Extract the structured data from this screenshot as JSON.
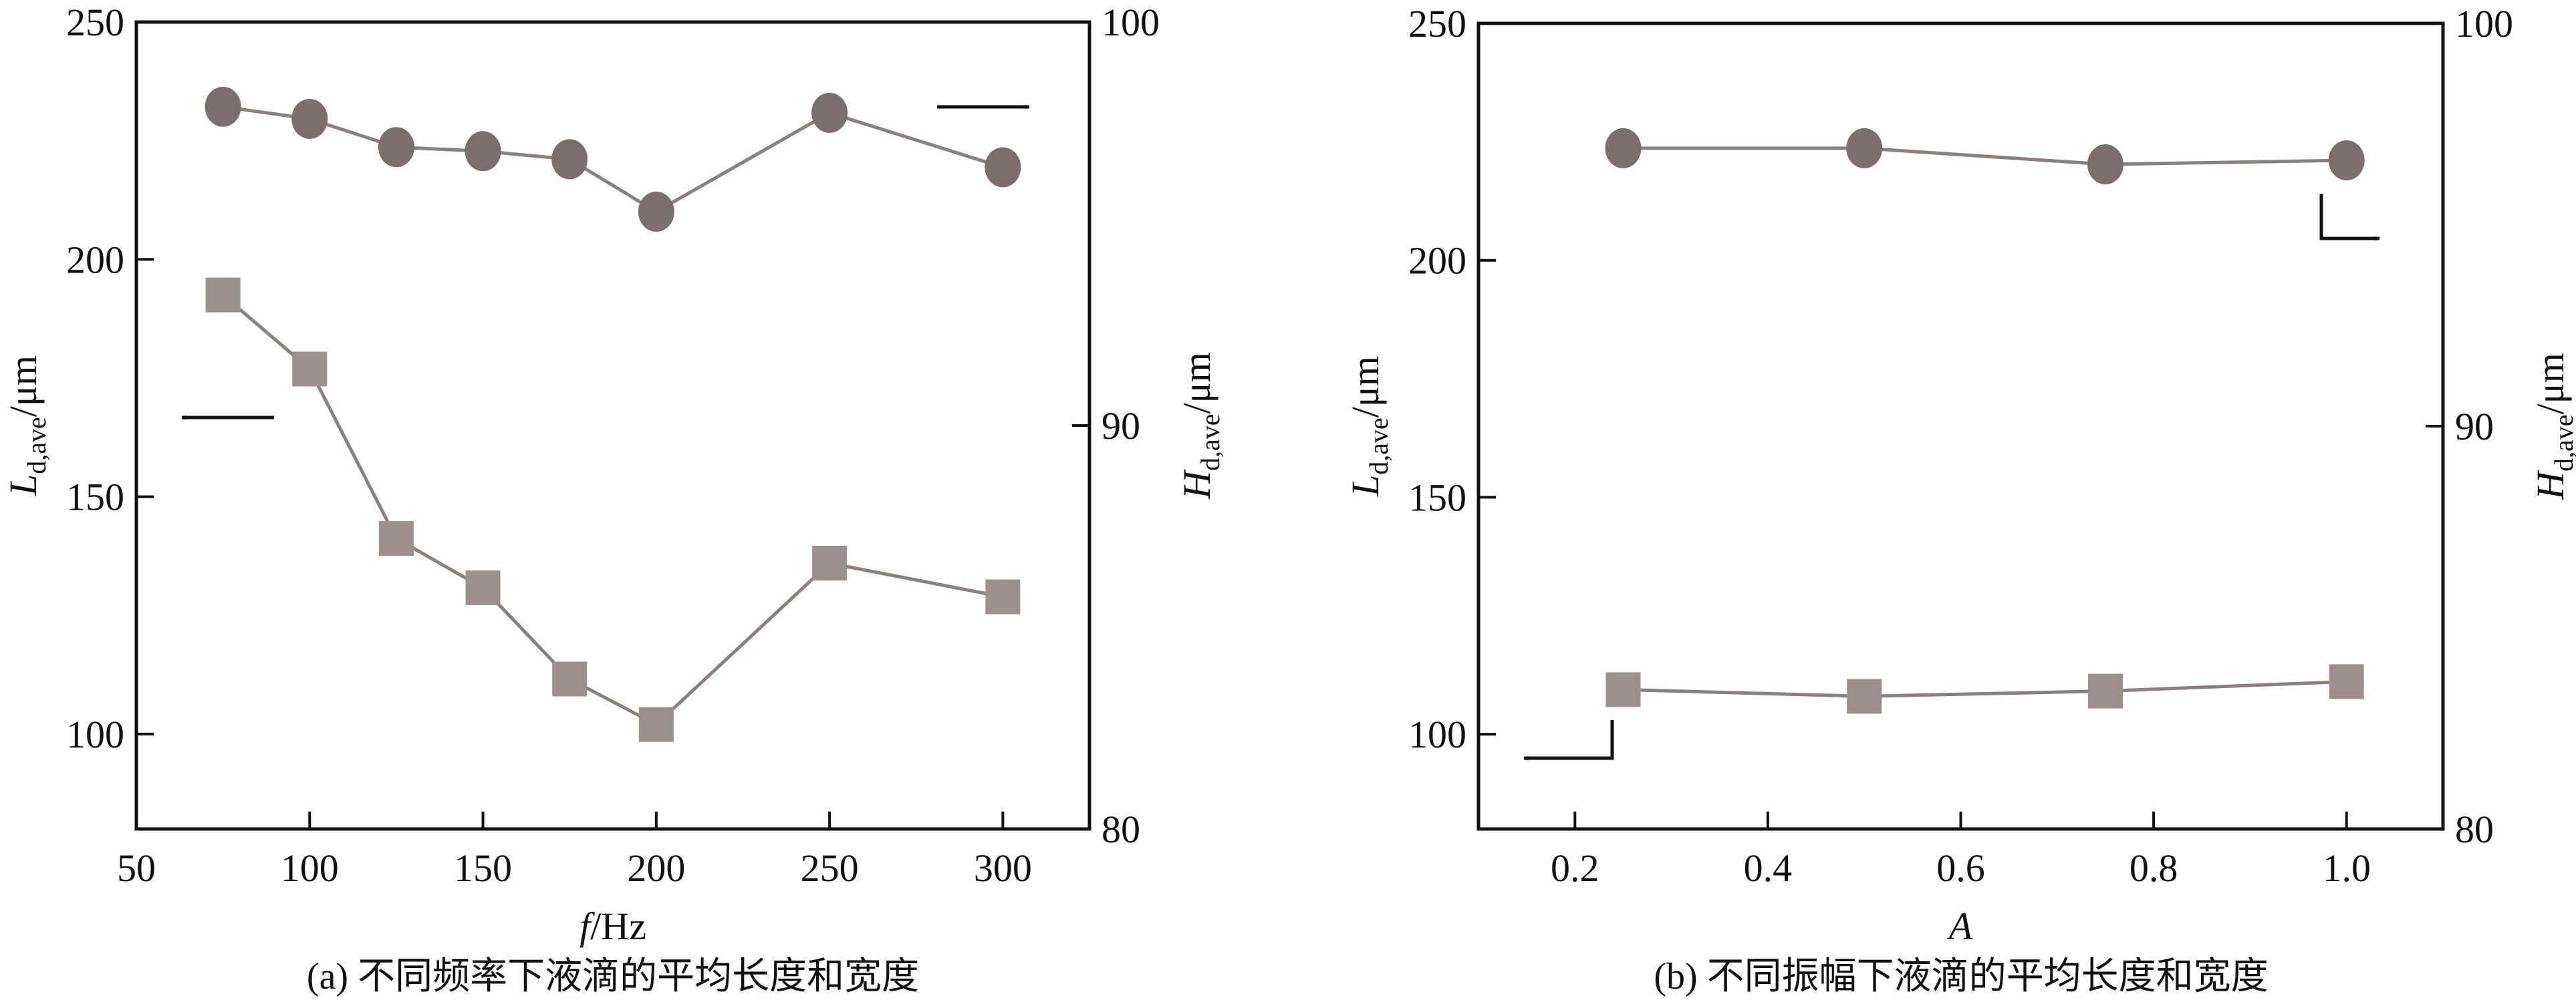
{
  "chart_data": [
    {
      "type": "line",
      "caption": "(a) 不同频率下液滴的平均长度和宽度",
      "xlabel_italic": "f",
      "xlabel_rest": "/Hz",
      "ylabel_left": {
        "main": "L",
        "sub": "d,ave",
        "unit": "/μm"
      },
      "ylabel_right": {
        "main": "H",
        "sub": "d,ave",
        "unit": "/μm"
      },
      "xlim": [
        50,
        325
      ],
      "ylim_left": [
        80,
        250
      ],
      "ylim_right": [
        80,
        100
      ],
      "xticks": [
        50,
        100,
        150,
        200,
        250,
        300
      ],
      "yticks_left": [
        100,
        150,
        200,
        250
      ],
      "yticks_right": [
        80,
        90,
        100
      ],
      "series": [
        {
          "name": "L_d,ave",
          "axis": "left",
          "marker": "square",
          "color": "#9a9090",
          "x": [
            75,
            100,
            125,
            150,
            175,
            200,
            250,
            300
          ],
          "y": [
            192.5,
            176.9,
            141.2,
            130.8,
            111.6,
            102.0,
            136.0,
            128.9
          ]
        },
        {
          "name": "H_d,ave",
          "axis": "right",
          "marker": "circle",
          "color": "#7a6e6e",
          "x": [
            75,
            100,
            125,
            150,
            175,
            200,
            250,
            300
          ],
          "y": [
            97.9,
            97.6,
            96.9,
            96.8,
            96.6,
            95.3,
            97.75,
            96.4
          ]
        }
      ],
      "annotations": [
        "arrow-left pointing to left axis (L series)",
        "arrow-right pointing to right axis (H series)"
      ]
    },
    {
      "type": "line",
      "caption": "(b) 不同振幅下液滴的平均长度和宽度",
      "xlabel_italic": "A",
      "xlabel_rest": "",
      "ylabel_left": {
        "main": "L",
        "sub": "d,ave",
        "unit": "/μm"
      },
      "ylabel_right": {
        "main": "H",
        "sub": "d,ave",
        "unit": "/μm"
      },
      "xlim": [
        0.1,
        1.1
      ],
      "ylim_left": [
        80,
        250
      ],
      "ylim_right": [
        80,
        100
      ],
      "xticks": [
        "0.2",
        "0.4",
        "0.6",
        "0.8",
        "1.0"
      ],
      "yticks_left": [
        100,
        150,
        200,
        250
      ],
      "yticks_right": [
        80,
        90,
        100
      ],
      "series": [
        {
          "name": "L_d,ave",
          "axis": "left",
          "marker": "square",
          "color": "#9a9090",
          "x": [
            0.25,
            0.5,
            0.75,
            1.0
          ],
          "y": [
            109.4,
            108.0,
            109.1,
            111.1
          ]
        },
        {
          "name": "H_d,ave",
          "axis": "right",
          "marker": "circle",
          "color": "#7a6e6e",
          "x": [
            0.25,
            0.5,
            0.75,
            1.0
          ],
          "y": [
            96.9,
            96.9,
            96.5,
            96.6
          ]
        }
      ],
      "annotations": [
        "L-shaped arrow to left axis",
        "L-shaped arrow to right axis"
      ]
    }
  ]
}
